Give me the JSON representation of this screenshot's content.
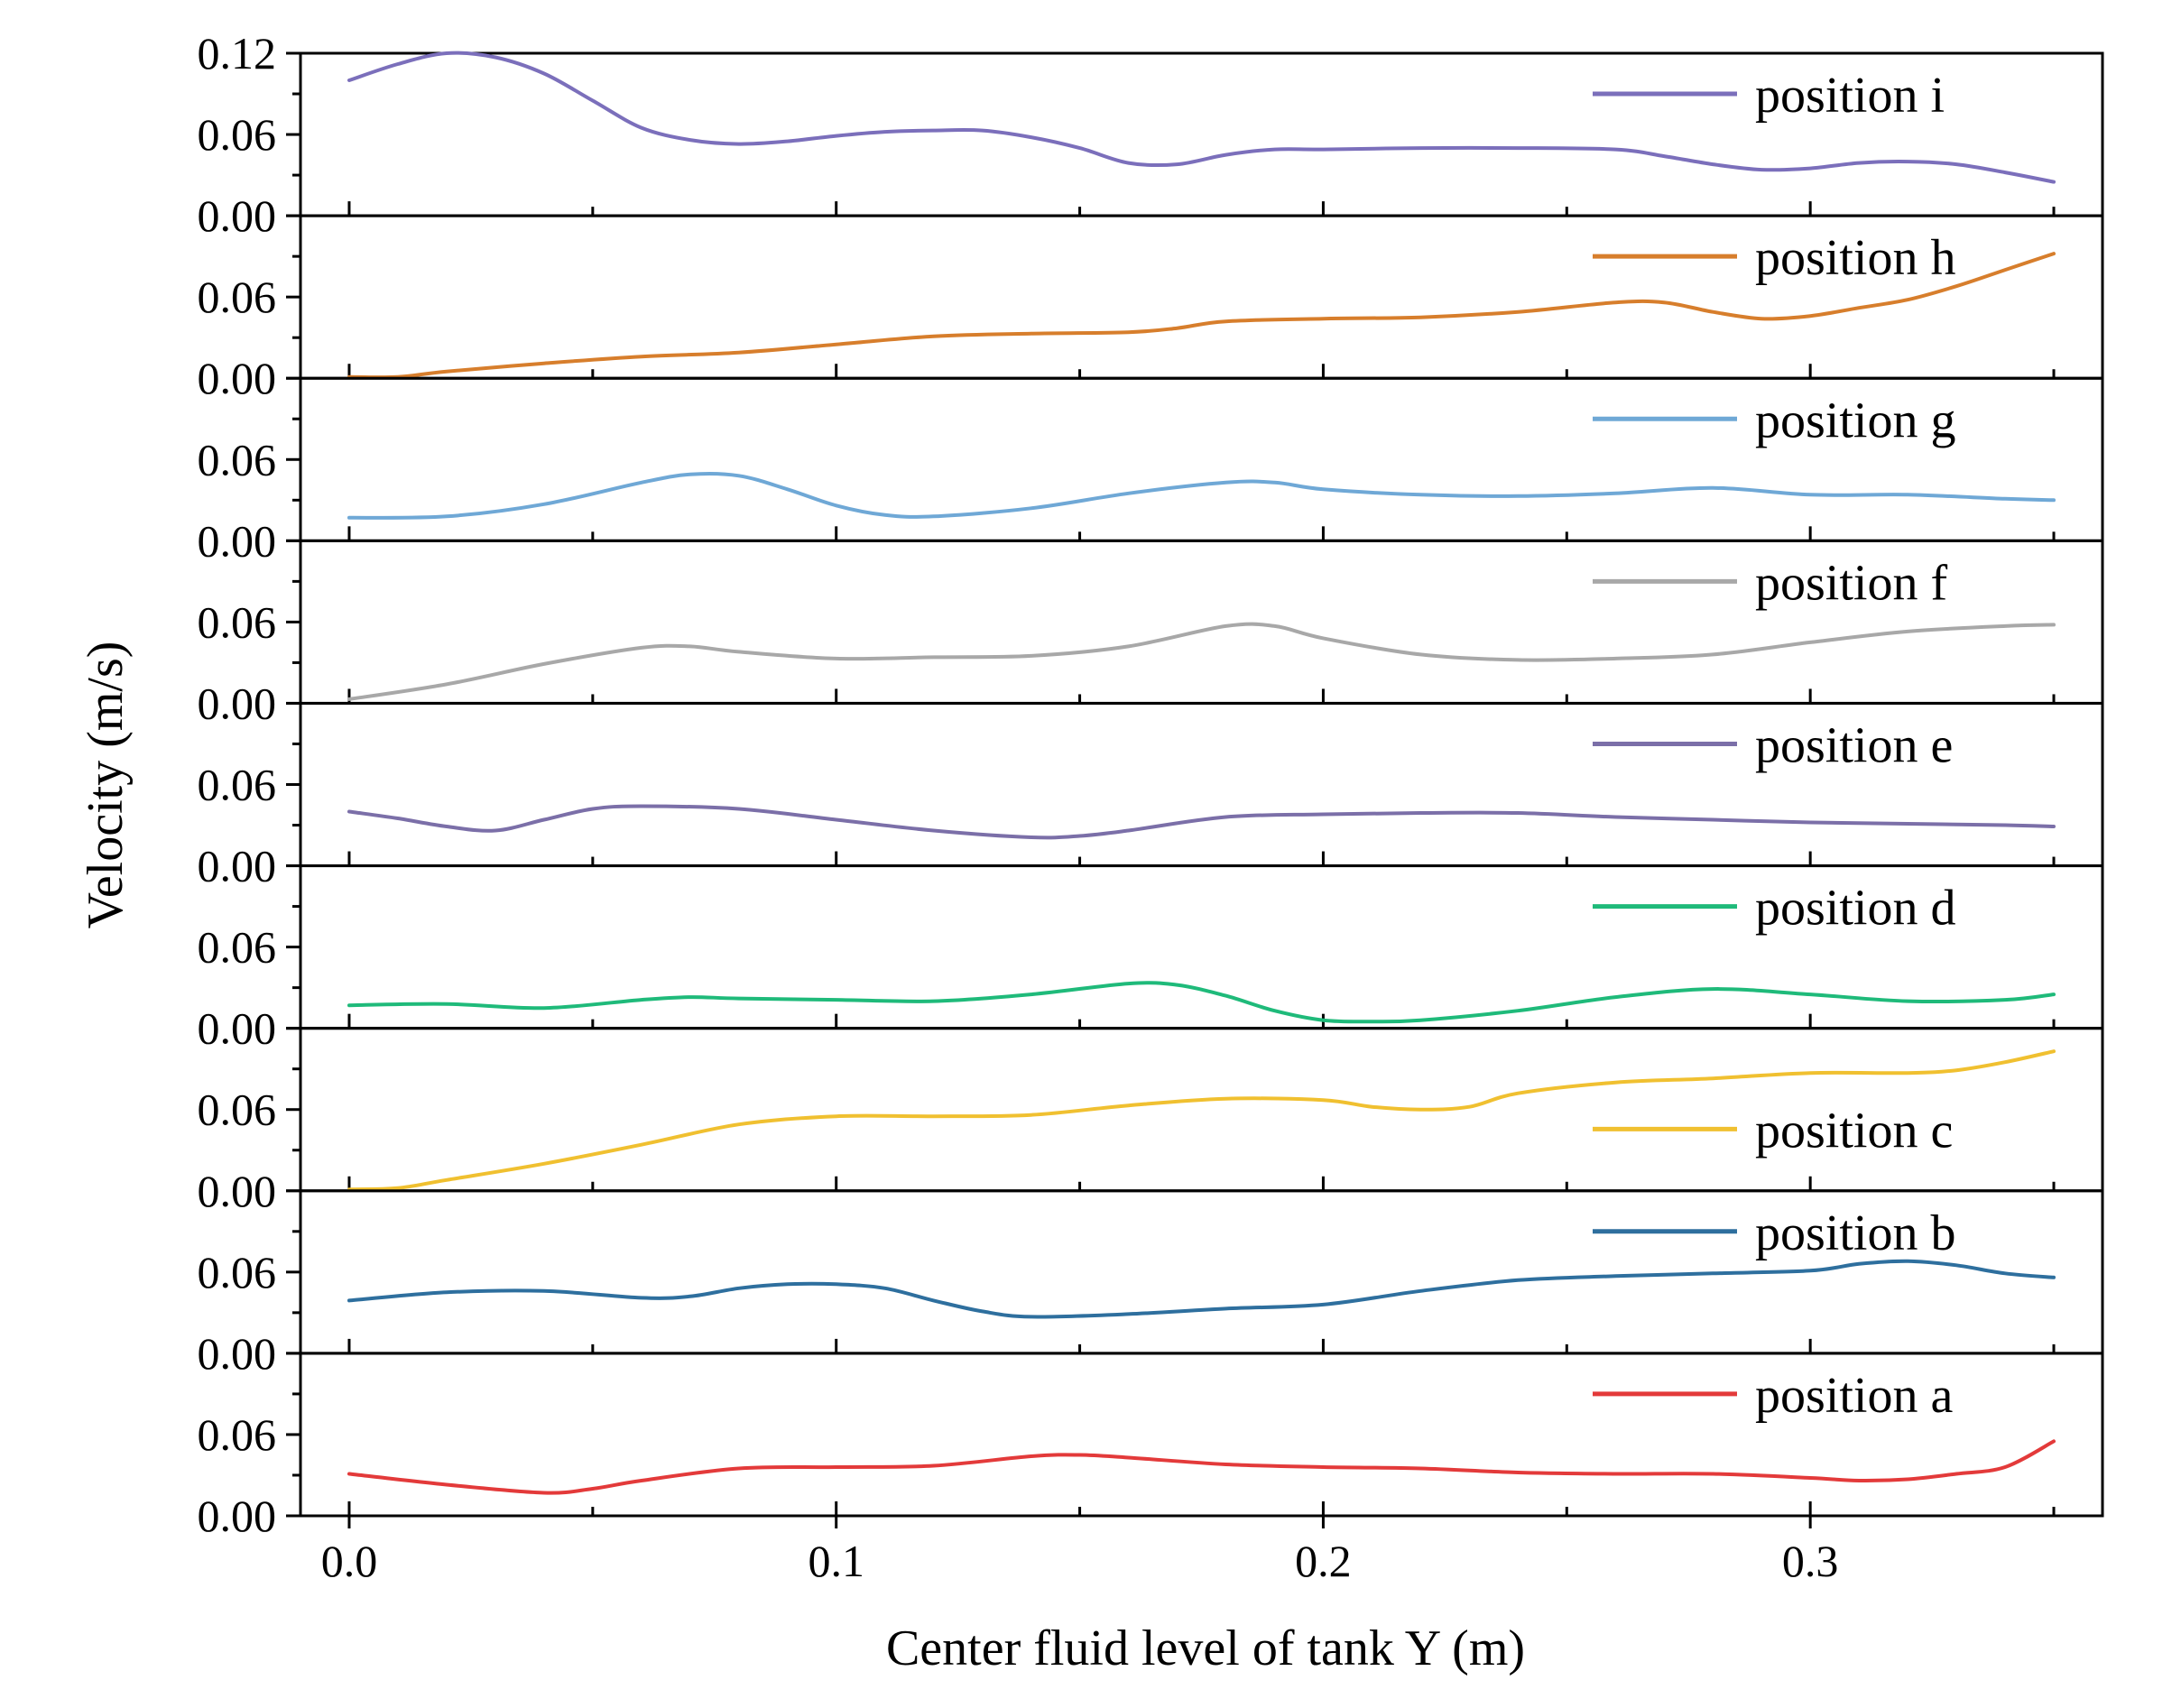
{
  "chart_data": {
    "type": "line",
    "layout": "stacked panels sharing x axis",
    "xlabel": "Center fluid level of tank Y (m)",
    "ylabel": "Velocity (m/s)",
    "xlim": [
      -0.01,
      0.36
    ],
    "ylim": [
      0,
      0.12
    ],
    "x_ticks": [
      0.0,
      0.1,
      0.2,
      0.3
    ],
    "x_tick_labels": [
      "0.0",
      "0.1",
      "0.2",
      "0.3"
    ],
    "y_ticks": [
      0,
      0.06,
      0.12
    ],
    "y_tick_labels": [
      "0.00",
      "0.06",
      "0.12"
    ],
    "grid": false,
    "legend_placement": "top-right of each panel",
    "series": [
      {
        "name": "position i",
        "color": "#7b6fbb",
        "points": [
          [
            0,
            0.1
          ],
          [
            0.01,
            0.112
          ],
          [
            0.02,
            0.12
          ],
          [
            0.03,
            0.117
          ],
          [
            0.04,
            0.105
          ],
          [
            0.05,
            0.085
          ],
          [
            0.06,
            0.065
          ],
          [
            0.07,
            0.056
          ],
          [
            0.08,
            0.053
          ],
          [
            0.09,
            0.055
          ],
          [
            0.1,
            0.059
          ],
          [
            0.11,
            0.062
          ],
          [
            0.12,
            0.063
          ],
          [
            0.13,
            0.063
          ],
          [
            0.14,
            0.058
          ],
          [
            0.15,
            0.05
          ],
          [
            0.16,
            0.039
          ],
          [
            0.17,
            0.038
          ],
          [
            0.18,
            0.045
          ],
          [
            0.19,
            0.049
          ],
          [
            0.2,
            0.049
          ],
          [
            0.22,
            0.05
          ],
          [
            0.24,
            0.05
          ],
          [
            0.26,
            0.049
          ],
          [
            0.27,
            0.044
          ],
          [
            0.28,
            0.038
          ],
          [
            0.29,
            0.034
          ],
          [
            0.3,
            0.035
          ],
          [
            0.31,
            0.039
          ],
          [
            0.32,
            0.04
          ],
          [
            0.33,
            0.038
          ],
          [
            0.34,
            0.032
          ],
          [
            0.35,
            0.025
          ]
        ]
      },
      {
        "name": "position h",
        "color": "#d77e2c",
        "points": [
          [
            0,
            0.001
          ],
          [
            0.01,
            0.001
          ],
          [
            0.02,
            0.005
          ],
          [
            0.04,
            0.011
          ],
          [
            0.06,
            0.016
          ],
          [
            0.08,
            0.019
          ],
          [
            0.1,
            0.025
          ],
          [
            0.12,
            0.031
          ],
          [
            0.14,
            0.033
          ],
          [
            0.16,
            0.034
          ],
          [
            0.17,
            0.037
          ],
          [
            0.18,
            0.042
          ],
          [
            0.2,
            0.044
          ],
          [
            0.22,
            0.045
          ],
          [
            0.24,
            0.049
          ],
          [
            0.26,
            0.056
          ],
          [
            0.27,
            0.056
          ],
          [
            0.28,
            0.049
          ],
          [
            0.29,
            0.044
          ],
          [
            0.3,
            0.046
          ],
          [
            0.31,
            0.052
          ],
          [
            0.32,
            0.058
          ],
          [
            0.33,
            0.068
          ],
          [
            0.34,
            0.08
          ],
          [
            0.35,
            0.092
          ]
        ]
      },
      {
        "name": "position g",
        "color": "#6fa8d6",
        "points": [
          [
            0,
            0.017
          ],
          [
            0.02,
            0.018
          ],
          [
            0.04,
            0.027
          ],
          [
            0.06,
            0.043
          ],
          [
            0.07,
            0.049
          ],
          [
            0.08,
            0.048
          ],
          [
            0.09,
            0.038
          ],
          [
            0.1,
            0.026
          ],
          [
            0.11,
            0.019
          ],
          [
            0.12,
            0.018
          ],
          [
            0.14,
            0.024
          ],
          [
            0.16,
            0.035
          ],
          [
            0.18,
            0.043
          ],
          [
            0.19,
            0.043
          ],
          [
            0.2,
            0.038
          ],
          [
            0.22,
            0.034
          ],
          [
            0.24,
            0.033
          ],
          [
            0.26,
            0.035
          ],
          [
            0.28,
            0.039
          ],
          [
            0.3,
            0.034
          ],
          [
            0.32,
            0.034
          ],
          [
            0.34,
            0.031
          ],
          [
            0.35,
            0.03
          ]
        ]
      },
      {
        "name": "position f",
        "color": "#a8a8a8",
        "points": [
          [
            0,
            0.003
          ],
          [
            0.02,
            0.014
          ],
          [
            0.04,
            0.029
          ],
          [
            0.06,
            0.041
          ],
          [
            0.07,
            0.042
          ],
          [
            0.08,
            0.038
          ],
          [
            0.1,
            0.033
          ],
          [
            0.12,
            0.034
          ],
          [
            0.14,
            0.035
          ],
          [
            0.16,
            0.042
          ],
          [
            0.18,
            0.057
          ],
          [
            0.19,
            0.057
          ],
          [
            0.2,
            0.048
          ],
          [
            0.22,
            0.036
          ],
          [
            0.24,
            0.032
          ],
          [
            0.26,
            0.033
          ],
          [
            0.28,
            0.036
          ],
          [
            0.3,
            0.045
          ],
          [
            0.32,
            0.053
          ],
          [
            0.34,
            0.057
          ],
          [
            0.35,
            0.058
          ]
        ]
      },
      {
        "name": "position e",
        "color": "#7b6fa8",
        "points": [
          [
            0,
            0.04
          ],
          [
            0.01,
            0.035
          ],
          [
            0.02,
            0.029
          ],
          [
            0.03,
            0.026
          ],
          [
            0.04,
            0.034
          ],
          [
            0.05,
            0.042
          ],
          [
            0.06,
            0.044
          ],
          [
            0.08,
            0.042
          ],
          [
            0.1,
            0.034
          ],
          [
            0.12,
            0.026
          ],
          [
            0.14,
            0.021
          ],
          [
            0.15,
            0.022
          ],
          [
            0.16,
            0.026
          ],
          [
            0.18,
            0.036
          ],
          [
            0.2,
            0.038
          ],
          [
            0.22,
            0.039
          ],
          [
            0.24,
            0.039
          ],
          [
            0.26,
            0.036
          ],
          [
            0.28,
            0.034
          ],
          [
            0.3,
            0.032
          ],
          [
            0.32,
            0.031
          ],
          [
            0.34,
            0.03
          ],
          [
            0.35,
            0.029
          ]
        ]
      },
      {
        "name": "position d",
        "color": "#1fba7a",
        "points": [
          [
            0,
            0.017
          ],
          [
            0.02,
            0.018
          ],
          [
            0.04,
            0.015
          ],
          [
            0.06,
            0.021
          ],
          [
            0.07,
            0.023
          ],
          [
            0.08,
            0.022
          ],
          [
            0.1,
            0.021
          ],
          [
            0.12,
            0.02
          ],
          [
            0.14,
            0.025
          ],
          [
            0.16,
            0.033
          ],
          [
            0.17,
            0.032
          ],
          [
            0.18,
            0.024
          ],
          [
            0.19,
            0.013
          ],
          [
            0.2,
            0.006
          ],
          [
            0.21,
            0.005
          ],
          [
            0.22,
            0.006
          ],
          [
            0.24,
            0.013
          ],
          [
            0.26,
            0.023
          ],
          [
            0.28,
            0.029
          ],
          [
            0.3,
            0.025
          ],
          [
            0.32,
            0.02
          ],
          [
            0.34,
            0.021
          ],
          [
            0.35,
            0.025
          ]
        ]
      },
      {
        "name": "position c",
        "color": "#f0c030",
        "points": [
          [
            0,
            0.001
          ],
          [
            0.01,
            0.002
          ],
          [
            0.02,
            0.008
          ],
          [
            0.04,
            0.02
          ],
          [
            0.06,
            0.034
          ],
          [
            0.08,
            0.049
          ],
          [
            0.1,
            0.055
          ],
          [
            0.12,
            0.055
          ],
          [
            0.14,
            0.056
          ],
          [
            0.16,
            0.063
          ],
          [
            0.18,
            0.068
          ],
          [
            0.2,
            0.067
          ],
          [
            0.21,
            0.062
          ],
          [
            0.22,
            0.06
          ],
          [
            0.23,
            0.062
          ],
          [
            0.24,
            0.072
          ],
          [
            0.26,
            0.08
          ],
          [
            0.28,
            0.083
          ],
          [
            0.3,
            0.087
          ],
          [
            0.32,
            0.087
          ],
          [
            0.33,
            0.089
          ],
          [
            0.34,
            0.095
          ],
          [
            0.35,
            0.103
          ]
        ]
      },
      {
        "name": "position b",
        "color": "#2e6f9e",
        "points": [
          [
            0,
            0.039
          ],
          [
            0.02,
            0.045
          ],
          [
            0.04,
            0.046
          ],
          [
            0.06,
            0.041
          ],
          [
            0.07,
            0.042
          ],
          [
            0.08,
            0.048
          ],
          [
            0.09,
            0.051
          ],
          [
            0.1,
            0.051
          ],
          [
            0.11,
            0.048
          ],
          [
            0.12,
            0.039
          ],
          [
            0.13,
            0.031
          ],
          [
            0.14,
            0.027
          ],
          [
            0.16,
            0.029
          ],
          [
            0.18,
            0.033
          ],
          [
            0.2,
            0.036
          ],
          [
            0.22,
            0.046
          ],
          [
            0.24,
            0.054
          ],
          [
            0.26,
            0.057
          ],
          [
            0.28,
            0.059
          ],
          [
            0.3,
            0.061
          ],
          [
            0.31,
            0.066
          ],
          [
            0.32,
            0.068
          ],
          [
            0.33,
            0.065
          ],
          [
            0.34,
            0.059
          ],
          [
            0.35,
            0.056
          ]
        ]
      },
      {
        "name": "position a",
        "color": "#e33a3a",
        "points": [
          [
            0,
            0.031
          ],
          [
            0.02,
            0.023
          ],
          [
            0.04,
            0.017
          ],
          [
            0.05,
            0.02
          ],
          [
            0.06,
            0.026
          ],
          [
            0.08,
            0.035
          ],
          [
            0.1,
            0.036
          ],
          [
            0.12,
            0.037
          ],
          [
            0.14,
            0.044
          ],
          [
            0.15,
            0.045
          ],
          [
            0.16,
            0.043
          ],
          [
            0.18,
            0.038
          ],
          [
            0.2,
            0.036
          ],
          [
            0.22,
            0.035
          ],
          [
            0.24,
            0.032
          ],
          [
            0.26,
            0.031
          ],
          [
            0.28,
            0.031
          ],
          [
            0.3,
            0.028
          ],
          [
            0.31,
            0.026
          ],
          [
            0.32,
            0.027
          ],
          [
            0.33,
            0.031
          ],
          [
            0.34,
            0.036
          ],
          [
            0.35,
            0.055
          ]
        ]
      }
    ]
  }
}
